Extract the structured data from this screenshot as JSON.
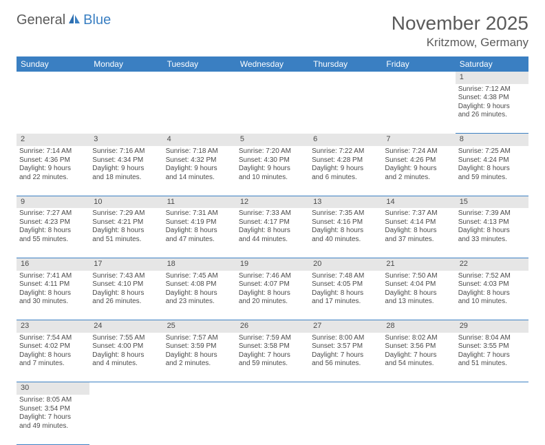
{
  "logo": {
    "part1": "General",
    "part2": "Blue"
  },
  "title": "November 2025",
  "location": "Kritzmow, Germany",
  "colors": {
    "header_bg": "#3a7fc2",
    "header_text": "#ffffff",
    "daynum_bg": "#e6e6e6",
    "row_border": "#3a7fc2",
    "text": "#4a4a4a",
    "page_bg": "#ffffff"
  },
  "day_headers": [
    "Sunday",
    "Monday",
    "Tuesday",
    "Wednesday",
    "Thursday",
    "Friday",
    "Saturday"
  ],
  "weeks": [
    [
      null,
      null,
      null,
      null,
      null,
      null,
      {
        "n": "1",
        "sunrise": "Sunrise: 7:12 AM",
        "sunset": "Sunset: 4:38 PM",
        "d1": "Daylight: 9 hours",
        "d2": "and 26 minutes."
      }
    ],
    [
      {
        "n": "2",
        "sunrise": "Sunrise: 7:14 AM",
        "sunset": "Sunset: 4:36 PM",
        "d1": "Daylight: 9 hours",
        "d2": "and 22 minutes."
      },
      {
        "n": "3",
        "sunrise": "Sunrise: 7:16 AM",
        "sunset": "Sunset: 4:34 PM",
        "d1": "Daylight: 9 hours",
        "d2": "and 18 minutes."
      },
      {
        "n": "4",
        "sunrise": "Sunrise: 7:18 AM",
        "sunset": "Sunset: 4:32 PM",
        "d1": "Daylight: 9 hours",
        "d2": "and 14 minutes."
      },
      {
        "n": "5",
        "sunrise": "Sunrise: 7:20 AM",
        "sunset": "Sunset: 4:30 PM",
        "d1": "Daylight: 9 hours",
        "d2": "and 10 minutes."
      },
      {
        "n": "6",
        "sunrise": "Sunrise: 7:22 AM",
        "sunset": "Sunset: 4:28 PM",
        "d1": "Daylight: 9 hours",
        "d2": "and 6 minutes."
      },
      {
        "n": "7",
        "sunrise": "Sunrise: 7:24 AM",
        "sunset": "Sunset: 4:26 PM",
        "d1": "Daylight: 9 hours",
        "d2": "and 2 minutes."
      },
      {
        "n": "8",
        "sunrise": "Sunrise: 7:25 AM",
        "sunset": "Sunset: 4:24 PM",
        "d1": "Daylight: 8 hours",
        "d2": "and 59 minutes."
      }
    ],
    [
      {
        "n": "9",
        "sunrise": "Sunrise: 7:27 AM",
        "sunset": "Sunset: 4:23 PM",
        "d1": "Daylight: 8 hours",
        "d2": "and 55 minutes."
      },
      {
        "n": "10",
        "sunrise": "Sunrise: 7:29 AM",
        "sunset": "Sunset: 4:21 PM",
        "d1": "Daylight: 8 hours",
        "d2": "and 51 minutes."
      },
      {
        "n": "11",
        "sunrise": "Sunrise: 7:31 AM",
        "sunset": "Sunset: 4:19 PM",
        "d1": "Daylight: 8 hours",
        "d2": "and 47 minutes."
      },
      {
        "n": "12",
        "sunrise": "Sunrise: 7:33 AM",
        "sunset": "Sunset: 4:17 PM",
        "d1": "Daylight: 8 hours",
        "d2": "and 44 minutes."
      },
      {
        "n": "13",
        "sunrise": "Sunrise: 7:35 AM",
        "sunset": "Sunset: 4:16 PM",
        "d1": "Daylight: 8 hours",
        "d2": "and 40 minutes."
      },
      {
        "n": "14",
        "sunrise": "Sunrise: 7:37 AM",
        "sunset": "Sunset: 4:14 PM",
        "d1": "Daylight: 8 hours",
        "d2": "and 37 minutes."
      },
      {
        "n": "15",
        "sunrise": "Sunrise: 7:39 AM",
        "sunset": "Sunset: 4:13 PM",
        "d1": "Daylight: 8 hours",
        "d2": "and 33 minutes."
      }
    ],
    [
      {
        "n": "16",
        "sunrise": "Sunrise: 7:41 AM",
        "sunset": "Sunset: 4:11 PM",
        "d1": "Daylight: 8 hours",
        "d2": "and 30 minutes."
      },
      {
        "n": "17",
        "sunrise": "Sunrise: 7:43 AM",
        "sunset": "Sunset: 4:10 PM",
        "d1": "Daylight: 8 hours",
        "d2": "and 26 minutes."
      },
      {
        "n": "18",
        "sunrise": "Sunrise: 7:45 AM",
        "sunset": "Sunset: 4:08 PM",
        "d1": "Daylight: 8 hours",
        "d2": "and 23 minutes."
      },
      {
        "n": "19",
        "sunrise": "Sunrise: 7:46 AM",
        "sunset": "Sunset: 4:07 PM",
        "d1": "Daylight: 8 hours",
        "d2": "and 20 minutes."
      },
      {
        "n": "20",
        "sunrise": "Sunrise: 7:48 AM",
        "sunset": "Sunset: 4:05 PM",
        "d1": "Daylight: 8 hours",
        "d2": "and 17 minutes."
      },
      {
        "n": "21",
        "sunrise": "Sunrise: 7:50 AM",
        "sunset": "Sunset: 4:04 PM",
        "d1": "Daylight: 8 hours",
        "d2": "and 13 minutes."
      },
      {
        "n": "22",
        "sunrise": "Sunrise: 7:52 AM",
        "sunset": "Sunset: 4:03 PM",
        "d1": "Daylight: 8 hours",
        "d2": "and 10 minutes."
      }
    ],
    [
      {
        "n": "23",
        "sunrise": "Sunrise: 7:54 AM",
        "sunset": "Sunset: 4:02 PM",
        "d1": "Daylight: 8 hours",
        "d2": "and 7 minutes."
      },
      {
        "n": "24",
        "sunrise": "Sunrise: 7:55 AM",
        "sunset": "Sunset: 4:00 PM",
        "d1": "Daylight: 8 hours",
        "d2": "and 4 minutes."
      },
      {
        "n": "25",
        "sunrise": "Sunrise: 7:57 AM",
        "sunset": "Sunset: 3:59 PM",
        "d1": "Daylight: 8 hours",
        "d2": "and 2 minutes."
      },
      {
        "n": "26",
        "sunrise": "Sunrise: 7:59 AM",
        "sunset": "Sunset: 3:58 PM",
        "d1": "Daylight: 7 hours",
        "d2": "and 59 minutes."
      },
      {
        "n": "27",
        "sunrise": "Sunrise: 8:00 AM",
        "sunset": "Sunset: 3:57 PM",
        "d1": "Daylight: 7 hours",
        "d2": "and 56 minutes."
      },
      {
        "n": "28",
        "sunrise": "Sunrise: 8:02 AM",
        "sunset": "Sunset: 3:56 PM",
        "d1": "Daylight: 7 hours",
        "d2": "and 54 minutes."
      },
      {
        "n": "29",
        "sunrise": "Sunrise: 8:04 AM",
        "sunset": "Sunset: 3:55 PM",
        "d1": "Daylight: 7 hours",
        "d2": "and 51 minutes."
      }
    ],
    [
      {
        "n": "30",
        "sunrise": "Sunrise: 8:05 AM",
        "sunset": "Sunset: 3:54 PM",
        "d1": "Daylight: 7 hours",
        "d2": "and 49 minutes."
      },
      null,
      null,
      null,
      null,
      null,
      null
    ]
  ]
}
